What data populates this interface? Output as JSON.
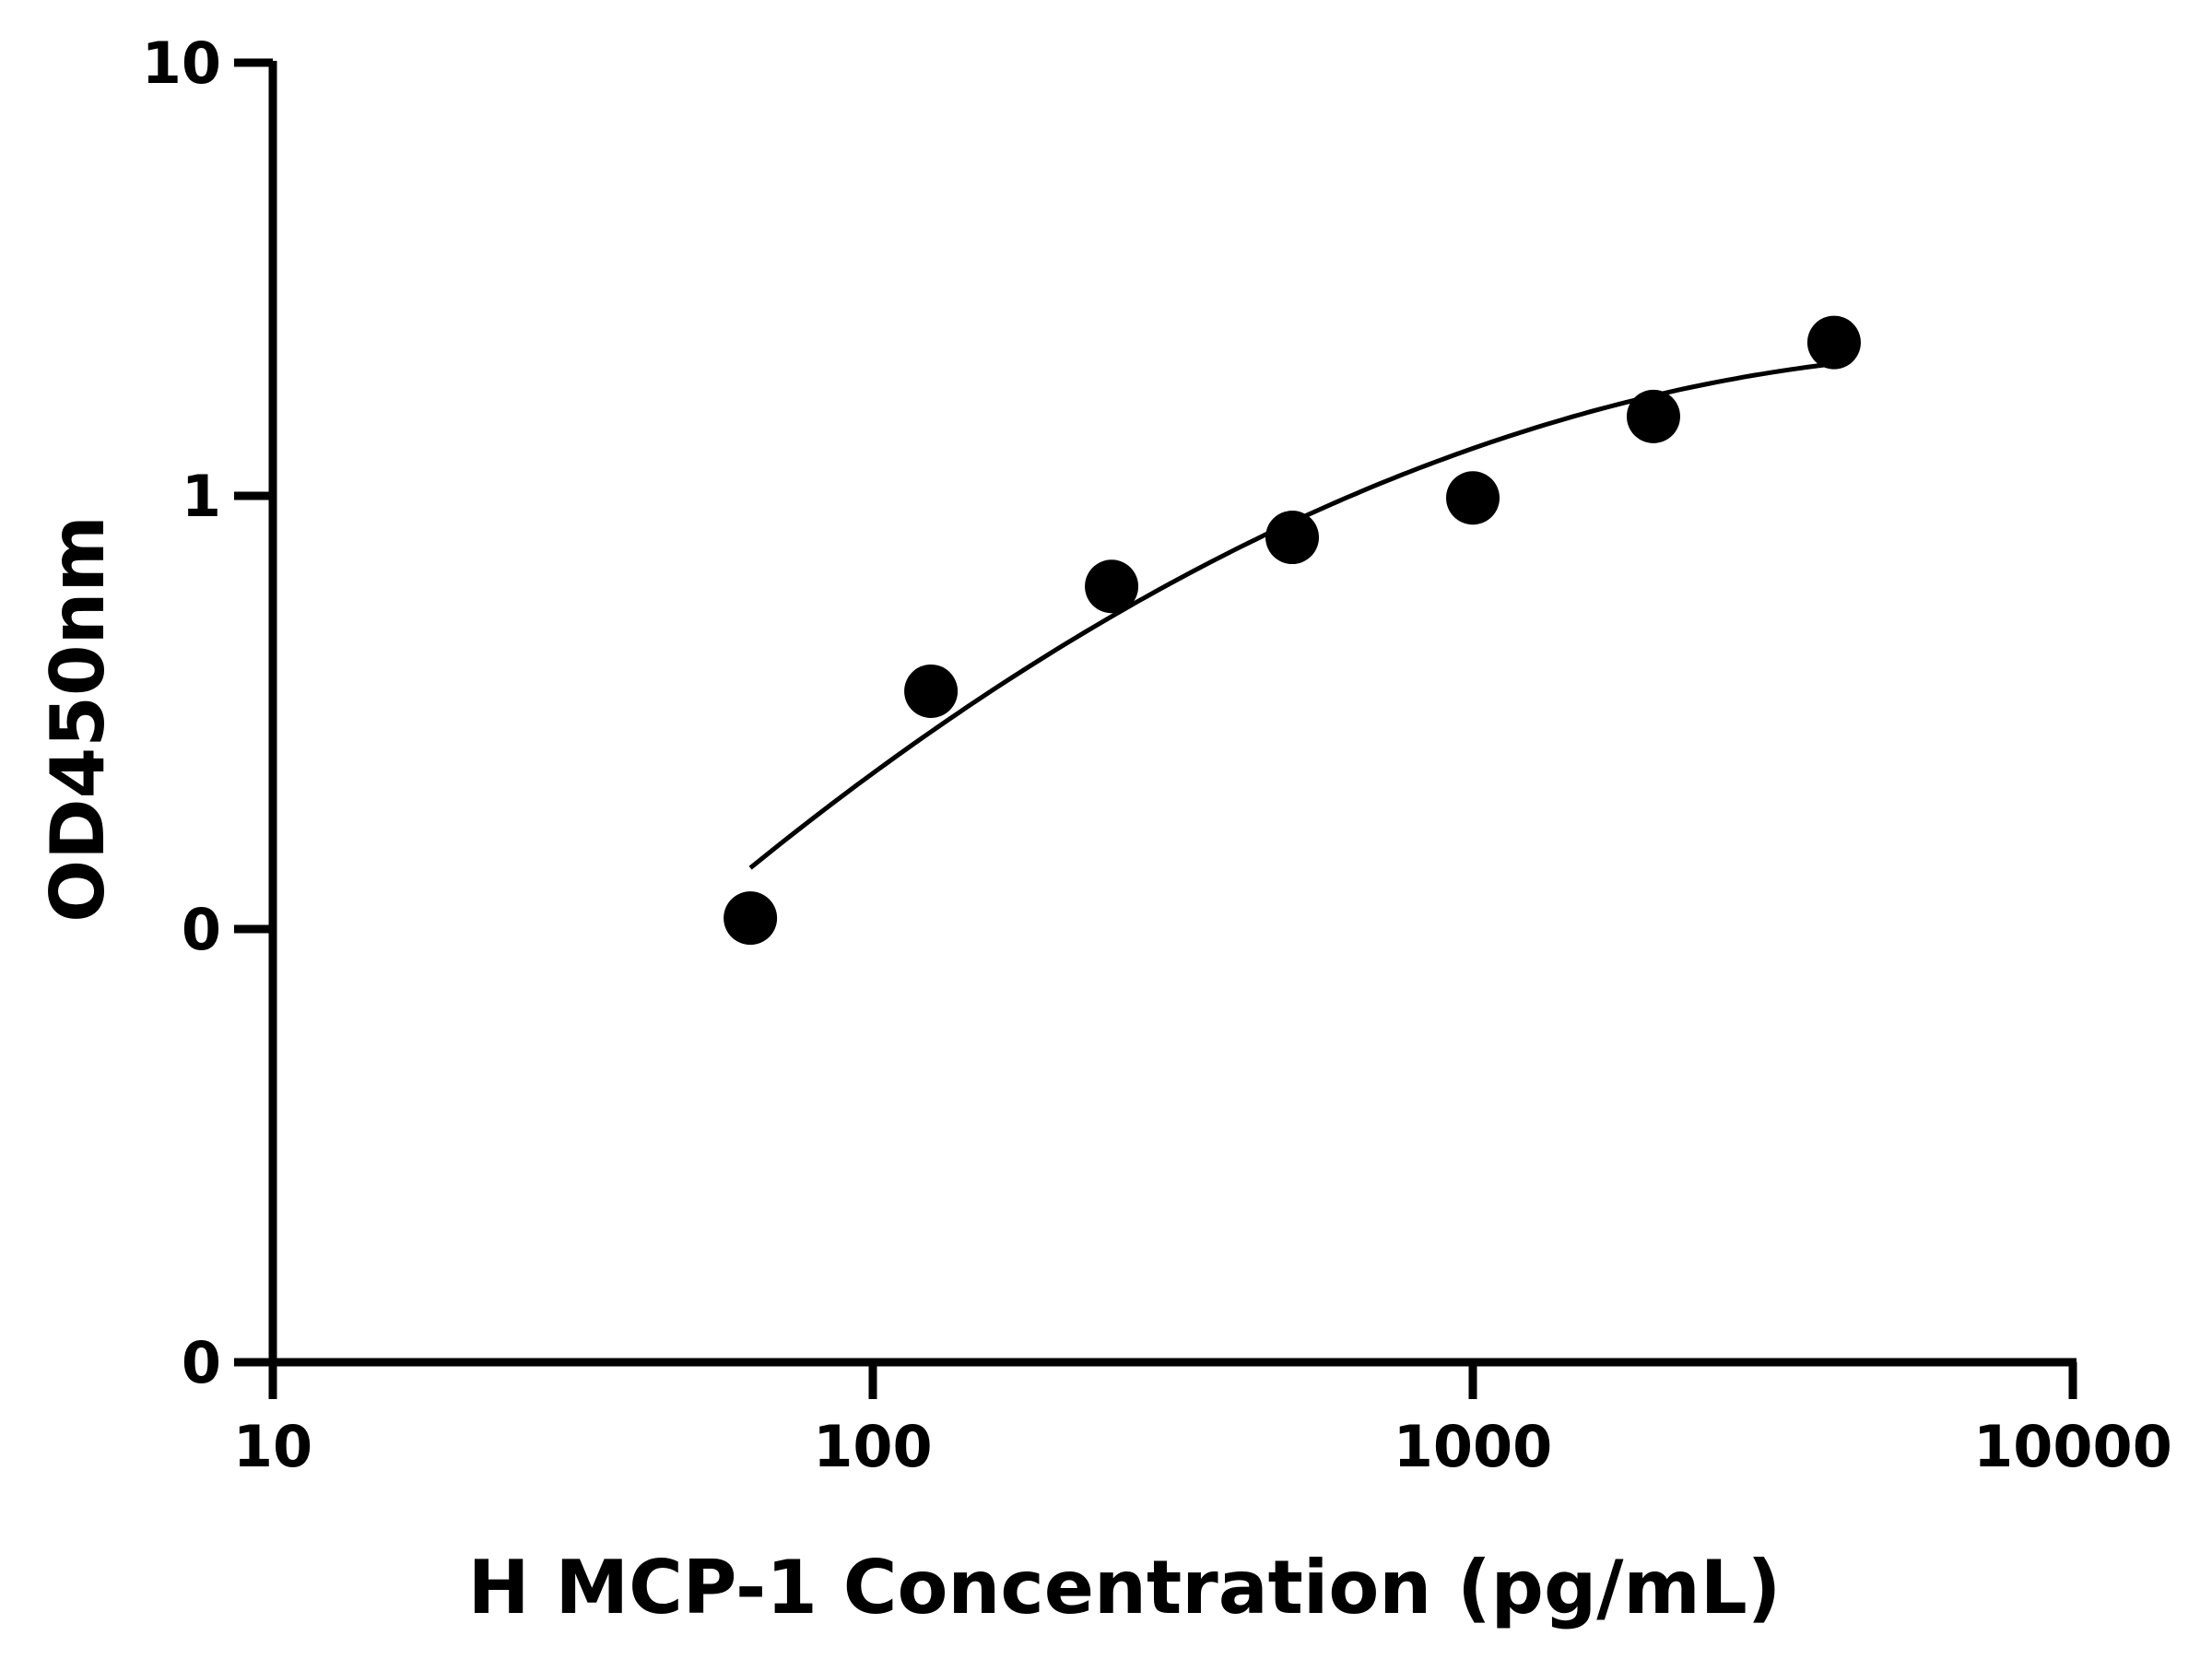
{
  "chart_data": {
    "type": "scatter",
    "title": "",
    "xlabel": "H MCP-1 Concentration (pg/mL)",
    "ylabel": "OD450nm",
    "x_scale": "log",
    "y_scale": "log",
    "xlim": [
      10,
      10000
    ],
    "ylim": [
      0.01,
      10
    ],
    "x_ticks": [
      {
        "value": 10,
        "label": "10"
      },
      {
        "value": 100,
        "label": "100"
      },
      {
        "value": 1000,
        "label": "1000"
      },
      {
        "value": 10000,
        "label": "10000"
      }
    ],
    "y_ticks": [
      {
        "value": 0.01,
        "label": "0"
      },
      {
        "value": 0.1,
        "label": "0"
      },
      {
        "value": 1,
        "label": "1"
      },
      {
        "value": 10,
        "label": "10"
      }
    ],
    "grid": false,
    "legend": "none",
    "series": [
      {
        "x": [
          62.5,
          125,
          250,
          500,
          1000,
          2000,
          4000
        ],
        "y": [
          0.106,
          0.354,
          0.618,
          0.802,
          0.989,
          1.525,
          2.26
        ],
        "color": "#000000",
        "marker": "circle"
      }
    ],
    "fit_curve": {
      "x": [
        62.5,
        125,
        250,
        500,
        1000,
        2000,
        4000
      ],
      "y": [
        0.133,
        0.296,
        0.552,
        0.868,
        1.232,
        1.641,
        2.1
      ],
      "color": "#000000"
    }
  }
}
